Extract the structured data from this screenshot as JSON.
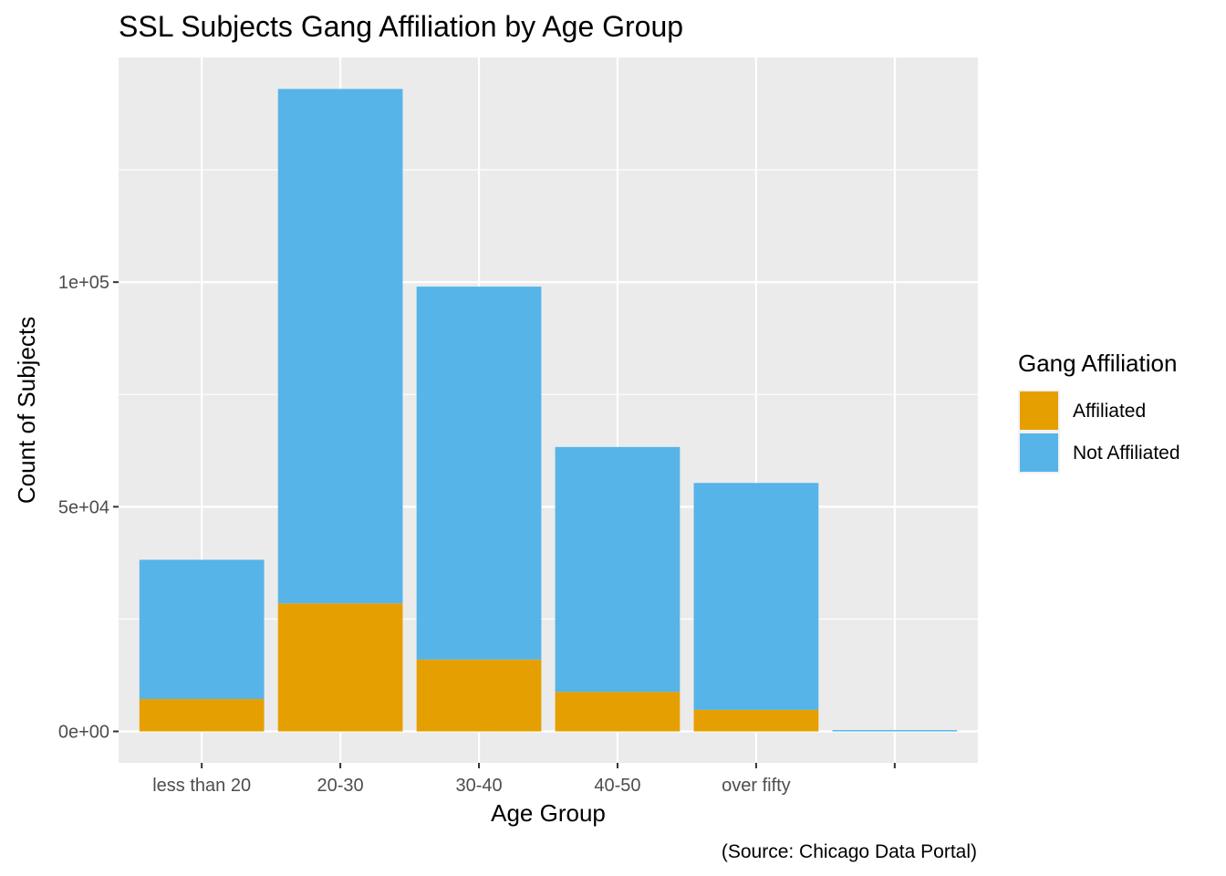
{
  "chart_data": {
    "type": "bar",
    "stacked": true,
    "title": "SSL Subjects Gang Affiliation by Age Group",
    "xlabel": "Age Group",
    "ylabel": "Count of Subjects",
    "caption": "(Source: Chicago Data Portal)",
    "categories": [
      "less than 20",
      "20-30",
      "30-40",
      "40-50",
      "over fifty",
      ""
    ],
    "series": [
      {
        "name": "Affiliated",
        "color": "#E69F00",
        "values": [
          7200,
          28500,
          16000,
          8800,
          4800,
          0
        ]
      },
      {
        "name": "Not Affiliated",
        "color": "#56B4E9",
        "values": [
          31000,
          114500,
          83000,
          54500,
          50500,
          300
        ]
      }
    ],
    "ylim": [
      -7000,
      150000
    ],
    "yticks": [
      {
        "value": 0,
        "label": "0e+00"
      },
      {
        "value": 50000,
        "label": "5e+04"
      },
      {
        "value": 100000,
        "label": "1e+05"
      }
    ],
    "grid": true,
    "legend": {
      "title": "Gang Affiliation",
      "placement": "right"
    }
  }
}
